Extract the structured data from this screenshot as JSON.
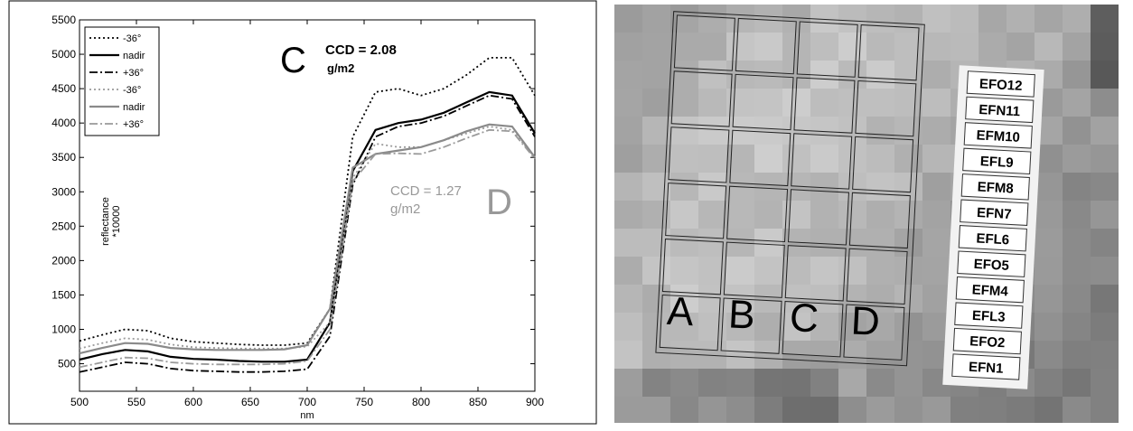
{
  "chart_data": {
    "type": "line",
    "x": [
      500,
      520,
      540,
      560,
      580,
      600,
      620,
      640,
      660,
      680,
      700,
      720,
      740,
      760,
      780,
      800,
      820,
      840,
      860,
      880,
      900
    ],
    "series": [
      {
        "name": "-36°",
        "color": "#000000",
        "dash": "dotted",
        "values": [
          830,
          920,
          1000,
          980,
          870,
          820,
          800,
          780,
          770,
          770,
          800,
          1300,
          3800,
          4450,
          4500,
          4400,
          4500,
          4700,
          4950,
          4950,
          4400
        ]
      },
      {
        "name": "nadir",
        "color": "#000000",
        "dash": "solid",
        "values": [
          560,
          640,
          700,
          680,
          600,
          570,
          560,
          540,
          530,
          530,
          560,
          1100,
          3300,
          3900,
          4000,
          4050,
          4150,
          4300,
          4450,
          4400,
          3850
        ]
      },
      {
        "name": "+36°",
        "color": "#000000",
        "dash": "dashdot",
        "values": [
          380,
          450,
          520,
          500,
          430,
          400,
          390,
          380,
          380,
          390,
          420,
          900,
          3100,
          3800,
          3950,
          4000,
          4100,
          4250,
          4400,
          4350,
          3800
        ]
      },
      {
        "name": "-36°",
        "color": "#9a9a9a",
        "dash": "dotted",
        "values": [
          720,
          800,
          870,
          850,
          780,
          740,
          730,
          720,
          720,
          720,
          750,
          1100,
          3200,
          3700,
          3650,
          3650,
          3750,
          3850,
          3950,
          3900,
          3500
        ]
      },
      {
        "name": "nadir",
        "color": "#8a8a8a",
        "dash": "solid",
        "values": [
          650,
          730,
          800,
          790,
          730,
          710,
          700,
          700,
          700,
          710,
          770,
          1300,
          3350,
          3550,
          3600,
          3650,
          3750,
          3880,
          3980,
          3950,
          3500
        ]
      },
      {
        "name": "+36°",
        "color": "#9a9a9a",
        "dash": "dashdot",
        "values": [
          450,
          520,
          590,
          580,
          520,
          500,
          490,
          490,
          490,
          500,
          540,
          1000,
          3150,
          3550,
          3560,
          3550,
          3650,
          3780,
          3900,
          3880,
          3480
        ]
      }
    ],
    "xlim": [
      500,
      900
    ],
    "xticks": [
      500,
      550,
      600,
      650,
      700,
      750,
      800,
      850,
      900
    ],
    "ylim": [
      100,
      5500
    ],
    "yticks": [
      500,
      1000,
      1500,
      2000,
      2500,
      3000,
      3500,
      4000,
      4500,
      5000,
      5500
    ],
    "x_label": "nm",
    "y_label": [
      "reflectance",
      "*10000"
    ],
    "legend": "upper left",
    "annotations": {
      "c_letter": "C",
      "c_text": [
        "CCD = 2.08",
        "g/m2"
      ],
      "d_letter": "D",
      "d_text": [
        "CCD = 1.27",
        "g/m2"
      ]
    }
  },
  "image_panel": {
    "plot_labels": [
      "A",
      "B",
      "C",
      "D"
    ],
    "strip_labels": [
      "EFO12",
      "EFN11",
      "EFM10",
      "EFL9",
      "EFM8",
      "EFN7",
      "EFL6",
      "EFO5",
      "EFM4",
      "EFL3",
      "EFO2",
      "EFN1"
    ]
  }
}
